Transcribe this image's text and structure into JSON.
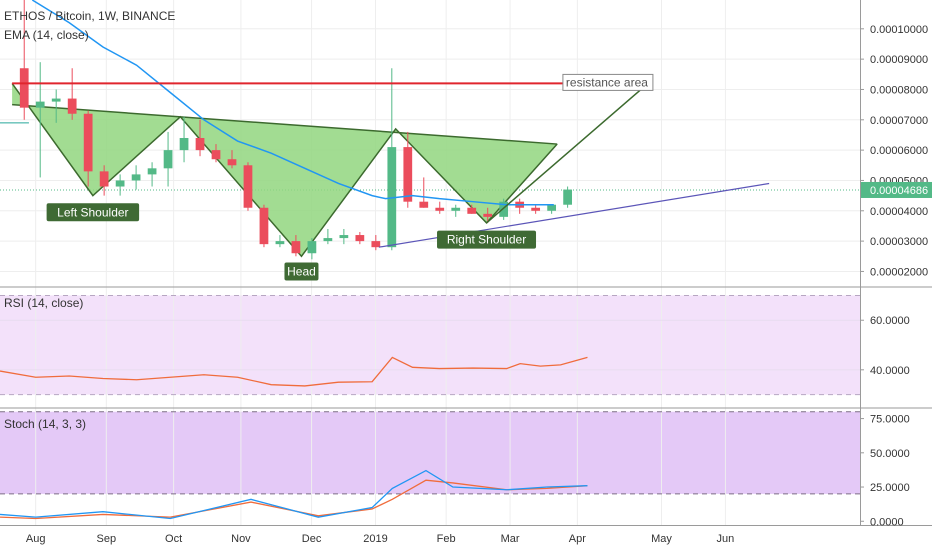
{
  "chart_data": {
    "type": "candlestick",
    "symbol_line": "ETHOS / Bitcoin, 1W, BINANCE",
    "indicator_line": "EMA (14, close)",
    "price_axis": {
      "ticks": [
        "0.00010000",
        "0.00009000",
        "0.00008000",
        "0.00007000",
        "0.00006000",
        "0.00005000",
        "0.00004000",
        "0.00003000",
        "0.00002000"
      ],
      "range": [
        1.52e-05,
        0.0001095
      ],
      "last_price": "0.00004686",
      "last_value": 4.686e-05
    },
    "x_axis": {
      "ticks": [
        "Aug",
        "Sep",
        "Oct",
        "Nov",
        "Dec",
        "2019",
        "Feb",
        "Mar",
        "Apr",
        "May",
        "Jun"
      ],
      "tick_weeks": [
        0,
        10.5,
        20.5,
        30.5,
        41,
        50.5,
        61,
        70.5,
        80.5,
        93,
        102.5
      ],
      "week_range": [
        -5.3,
        122.5
      ]
    },
    "candles": [
      {
        "o": 8.7e-05,
        "h": 0.00011,
        "l": 7e-05,
        "c": 7.4e-05
      },
      {
        "o": 7.4e-05,
        "h": 8.9e-05,
        "l": 5.1e-05,
        "c": 7.6e-05
      },
      {
        "o": 7.6e-05,
        "h": 8e-05,
        "l": 6.9e-05,
        "c": 7.7e-05
      },
      {
        "o": 7.7e-05,
        "h": 8.7e-05,
        "l": 7e-05,
        "c": 7.2e-05
      },
      {
        "o": 7.2e-05,
        "h": 7.3e-05,
        "l": 4.8e-05,
        "c": 5.3e-05
      },
      {
        "o": 5.3e-05,
        "h": 5.5e-05,
        "l": 4.5e-05,
        "c": 4.8e-05
      },
      {
        "o": 4.8e-05,
        "h": 5.2e-05,
        "l": 4.5e-05,
        "c": 5e-05
      },
      {
        "o": 5e-05,
        "h": 5.5e-05,
        "l": 4.7e-05,
        "c": 5.2e-05
      },
      {
        "o": 5.2e-05,
        "h": 5.6e-05,
        "l": 4.8e-05,
        "c": 5.4e-05
      },
      {
        "o": 5.4e-05,
        "h": 6.6e-05,
        "l": 4.8e-05,
        "c": 6e-05
      },
      {
        "o": 6e-05,
        "h": 7.1e-05,
        "l": 5.6e-05,
        "c": 6.4e-05
      },
      {
        "o": 6.4e-05,
        "h": 7e-05,
        "l": 5.8e-05,
        "c": 6e-05
      },
      {
        "o": 6e-05,
        "h": 6.2e-05,
        "l": 5.6e-05,
        "c": 5.7e-05
      },
      {
        "o": 5.7e-05,
        "h": 6e-05,
        "l": 5.4e-05,
        "c": 5.5e-05
      },
      {
        "o": 5.5e-05,
        "h": 5.6e-05,
        "l": 4e-05,
        "c": 4.1e-05
      },
      {
        "o": 4.1e-05,
        "h": 4.2e-05,
        "l": 2.8e-05,
        "c": 2.9e-05
      },
      {
        "o": 2.9e-05,
        "h": 3.2e-05,
        "l": 2.8e-05,
        "c": 3e-05
      },
      {
        "o": 3e-05,
        "h": 3.2e-05,
        "l": 2.5e-05,
        "c": 2.6e-05
      },
      {
        "o": 2.6e-05,
        "h": 3.1e-05,
        "l": 2.4e-05,
        "c": 3e-05
      },
      {
        "o": 3e-05,
        "h": 3.4e-05,
        "l": 2.9e-05,
        "c": 3.1e-05
      },
      {
        "o": 3.1e-05,
        "h": 3.4e-05,
        "l": 2.9e-05,
        "c": 3.2e-05
      },
      {
        "o": 3.2e-05,
        "h": 3.3e-05,
        "l": 2.9e-05,
        "c": 3e-05
      },
      {
        "o": 3e-05,
        "h": 3.2e-05,
        "l": 2.7e-05,
        "c": 2.8e-05
      },
      {
        "o": 2.8e-05,
        "h": 8.7e-05,
        "l": 2.7e-05,
        "c": 6.1e-05
      },
      {
        "o": 6.1e-05,
        "h": 6.6e-05,
        "l": 4.1e-05,
        "c": 4.3e-05
      },
      {
        "o": 4.3e-05,
        "h": 5.1e-05,
        "l": 4.1e-05,
        "c": 4.1e-05
      },
      {
        "o": 4.1e-05,
        "h": 4.3e-05,
        "l": 3.9e-05,
        "c": 4e-05
      },
      {
        "o": 4e-05,
        "h": 4.2e-05,
        "l": 3.8e-05,
        "c": 4.1e-05
      },
      {
        "o": 4.1e-05,
        "h": 4.2e-05,
        "l": 3.9e-05,
        "c": 3.9e-05
      },
      {
        "o": 3.9e-05,
        "h": 4.1e-05,
        "l": 3.6e-05,
        "c": 3.8e-05
      },
      {
        "o": 3.8e-05,
        "h": 4.4e-05,
        "l": 3.7e-05,
        "c": 4.3e-05
      },
      {
        "o": 4.3e-05,
        "h": 4.4e-05,
        "l": 3.9e-05,
        "c": 4.1e-05
      },
      {
        "o": 4.1e-05,
        "h": 4.2e-05,
        "l": 3.9e-05,
        "c": 4e-05
      },
      {
        "o": 4e-05,
        "h": 4.2e-05,
        "l": 3.9e-05,
        "c": 4.2e-05
      },
      {
        "o": 4.2e-05,
        "h": 4.8e-05,
        "l": 4.1e-05,
        "c": 4.7e-05
      }
    ],
    "ema": [
      {
        "w": -0.5,
        "v": 0.0001095
      },
      {
        "w": 5,
        "v": 0.000102
      },
      {
        "w": 10,
        "v": 9.4e-05
      },
      {
        "w": 15,
        "v": 8.8e-05
      },
      {
        "w": 20,
        "v": 7.9e-05
      },
      {
        "w": 25,
        "v": 7e-05
      },
      {
        "w": 30,
        "v": 6.3e-05
      },
      {
        "w": 35,
        "v": 5.9e-05
      },
      {
        "w": 40,
        "v": 5.4e-05
      },
      {
        "w": 45,
        "v": 4.9e-05
      },
      {
        "w": 50,
        "v": 4.5e-05
      },
      {
        "w": 52,
        "v": 4.4e-05
      },
      {
        "w": 56,
        "v": 4.5e-05
      },
      {
        "w": 60,
        "v": 4.4e-05
      },
      {
        "w": 65,
        "v": 4.3e-05
      },
      {
        "w": 70,
        "v": 4.2e-05
      },
      {
        "w": 75,
        "v": 4.2e-05
      },
      {
        "w": 77,
        "v": 4.2e-05
      }
    ],
    "horizontal_reference": 6.9e-05,
    "last_price_reference": 4.686e-05,
    "resistance": {
      "value": 8.2e-05,
      "label": "resistance area",
      "from_week": -3.5,
      "to_week": 78.5
    },
    "pattern": {
      "points": [
        {
          "w": -3.5,
          "v": 8.2e-05
        },
        {
          "w": 8.5,
          "v": 4.5e-05
        },
        {
          "w": 21.5,
          "v": 7.1e-05
        },
        {
          "w": 39.5,
          "v": 2.5e-05
        },
        {
          "w": 53.5,
          "v": 6.7e-05
        },
        {
          "w": 67,
          "v": 3.6e-05
        },
        {
          "w": 77.5,
          "v": 6.2e-05
        }
      ],
      "neckline": [
        {
          "w": -3.5,
          "v": 7.5e-05
        },
        {
          "w": 77.5,
          "v": 6.2e-05
        }
      ],
      "target": [
        {
          "w": 67,
          "v": 3.6e-05
        },
        {
          "w": 91,
          "v": 8.2e-05
        }
      ],
      "labels": [
        {
          "text": "Left Shoulder",
          "w": 8.5,
          "v": 3.95e-05
        },
        {
          "text": "Head",
          "w": 39.5,
          "v": 2e-05
        },
        {
          "text": "Right Shoulder",
          "w": 67,
          "v": 3.05e-05
        }
      ]
    },
    "trendline": [
      {
        "w": 51,
        "v": 2.8e-05
      },
      {
        "w": 109,
        "v": 4.9e-05
      }
    ],
    "rsi": {
      "label": "RSI (14, close)",
      "ticks": [
        "60.0000",
        "40.0000"
      ],
      "range": [
        25,
        73
      ],
      "bands": [
        70,
        30
      ],
      "points": [
        {
          "w": -5.3,
          "v": 39.5
        },
        {
          "w": 0,
          "v": 37
        },
        {
          "w": 5,
          "v": 37.5
        },
        {
          "w": 10,
          "v": 36.5
        },
        {
          "w": 15,
          "v": 36
        },
        {
          "w": 20,
          "v": 37
        },
        {
          "w": 25,
          "v": 38
        },
        {
          "w": 30,
          "v": 37
        },
        {
          "w": 35,
          "v": 34
        },
        {
          "w": 40,
          "v": 33.5
        },
        {
          "w": 45,
          "v": 35
        },
        {
          "w": 50,
          "v": 35.2
        },
        {
          "w": 53,
          "v": 45
        },
        {
          "w": 56,
          "v": 41
        },
        {
          "w": 60,
          "v": 40.5
        },
        {
          "w": 65,
          "v": 40.7
        },
        {
          "w": 70,
          "v": 40.5
        },
        {
          "w": 72,
          "v": 42.5
        },
        {
          "w": 75,
          "v": 41.5
        },
        {
          "w": 78,
          "v": 42
        },
        {
          "w": 82,
          "v": 45
        }
      ]
    },
    "stoch": {
      "label": "Stoch (14, 3, 3)",
      "ticks": [
        "75.0000",
        "50.0000",
        "25.0000",
        "0.0000"
      ],
      "range": [
        -2,
        82
      ],
      "bands": [
        80,
        20
      ],
      "k": [
        {
          "w": -5.3,
          "v": 5
        },
        {
          "w": 0,
          "v": 3
        },
        {
          "w": 10,
          "v": 7
        },
        {
          "w": 20,
          "v": 2
        },
        {
          "w": 32,
          "v": 16
        },
        {
          "w": 42,
          "v": 3
        },
        {
          "w": 50,
          "v": 10
        },
        {
          "w": 53,
          "v": 24
        },
        {
          "w": 58,
          "v": 37
        },
        {
          "w": 62,
          "v": 25
        },
        {
          "w": 70,
          "v": 23
        },
        {
          "w": 76,
          "v": 25
        },
        {
          "w": 82,
          "v": 26
        }
      ],
      "d": [
        {
          "w": -5.3,
          "v": 3
        },
        {
          "w": 0,
          "v": 2
        },
        {
          "w": 10,
          "v": 5
        },
        {
          "w": 20,
          "v": 3
        },
        {
          "w": 32,
          "v": 14
        },
        {
          "w": 42,
          "v": 4
        },
        {
          "w": 50,
          "v": 9
        },
        {
          "w": 53,
          "v": 16
        },
        {
          "w": 58,
          "v": 30
        },
        {
          "w": 62,
          "v": 28
        },
        {
          "w": 70,
          "v": 23
        },
        {
          "w": 76,
          "v": 24
        },
        {
          "w": 82,
          "v": 26
        }
      ]
    },
    "colors": {
      "up": "#53b987",
      "down": "#eb4d5c",
      "ema": "#2196f3",
      "resistance": "#e0252d",
      "pattern_fill": "#92d67f",
      "pattern_stroke": "#3c6a2e",
      "trendline": "#5b55b8",
      "label_bg": "#3f6a34",
      "rsi_line": "#f06c3c",
      "rsi_bg": "#f3e1fa",
      "stoch_bg": "#e4c9f7",
      "stoch_k": "#2196f3",
      "stoch_d": "#f06c3c",
      "price_tag": "#53b987"
    }
  }
}
